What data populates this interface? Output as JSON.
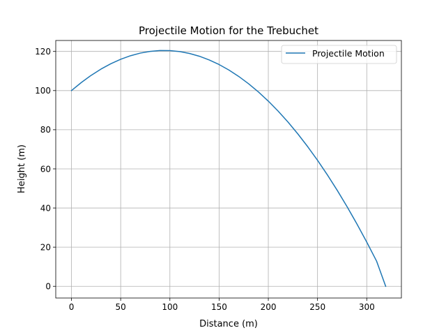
{
  "chart_data": {
    "type": "line",
    "title": "Projectile Motion for the Trebuchet",
    "xlabel": "Distance (m)",
    "ylabel": "Height (m)",
    "xlim": [
      -15.96,
      335.2
    ],
    "ylim": [
      -5.98,
      125.6
    ],
    "xticks": [
      0,
      50,
      100,
      150,
      200,
      250,
      300
    ],
    "yticks": [
      0,
      20,
      40,
      60,
      80,
      100,
      120
    ],
    "grid": true,
    "legend": "top-right",
    "series": [
      {
        "name": "Projectile Motion",
        "color": "#1f77b4",
        "x": [
          0,
          10,
          20,
          30,
          40,
          50,
          60,
          70,
          80,
          90,
          100,
          110,
          120,
          130,
          140,
          150,
          160,
          170,
          180,
          190,
          200,
          210,
          220,
          230,
          240,
          250,
          260,
          270,
          280,
          290,
          300,
          310,
          319.24
        ],
        "y": [
          100,
          104.12,
          107.79,
          110.99,
          113.72,
          116.0,
          117.81,
          119.16,
          120.04,
          120.47,
          120.43,
          119.93,
          118.96,
          117.54,
          115.65,
          113.3,
          110.49,
          107.21,
          103.47,
          99.27,
          94.61,
          89.49,
          83.91,
          77.86,
          71.35,
          64.38,
          56.94,
          49.05,
          40.69,
          31.87,
          22.59,
          12.85,
          0
        ]
      }
    ]
  }
}
